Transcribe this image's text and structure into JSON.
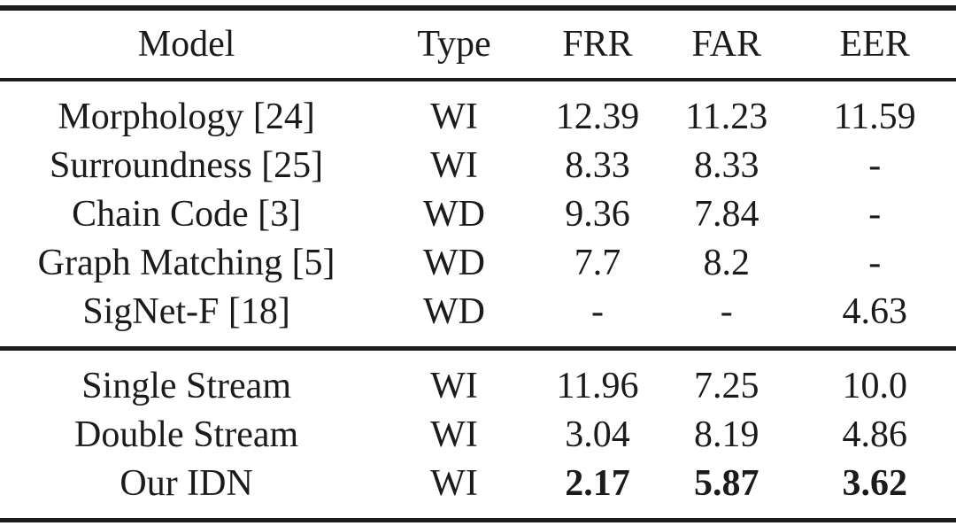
{
  "table": {
    "title": "model-comparison-results",
    "background_color": "#ffffff",
    "text_color": "#1b1b1b",
    "rule_color": "#1c1c1c",
    "columns": [
      "Model",
      "Type",
      "FRR",
      "FAR",
      "EER"
    ],
    "sections": [
      {
        "rows": [
          {
            "cells": [
              "Morphology [24]",
              "WI",
              "12.39",
              "11.23",
              "11.59"
            ]
          },
          {
            "cells": [
              "Surroundness [25]",
              "WI",
              "8.33",
              "8.33",
              "-"
            ]
          },
          {
            "cells": [
              "Chain Code [3]",
              "WD",
              "9.36",
              "7.84",
              "-"
            ]
          },
          {
            "cells": [
              "Graph Matching [5]",
              "WD",
              "7.7",
              "8.2",
              "-"
            ]
          },
          {
            "cells": [
              "SigNet-F [18]",
              "WD",
              "-",
              "-",
              "4.63"
            ]
          }
        ]
      },
      {
        "rows": [
          {
            "cells": [
              "Single Stream",
              "WI",
              "11.96",
              "7.25",
              "10.0"
            ]
          },
          {
            "cells": [
              "Double Stream",
              "WI",
              "3.04",
              "8.19",
              "4.86"
            ]
          },
          {
            "cells": [
              "Our IDN",
              "WI",
              "2.17",
              "5.87",
              "3.62"
            ],
            "emphasis": "bold-metric-values"
          }
        ]
      }
    ]
  }
}
